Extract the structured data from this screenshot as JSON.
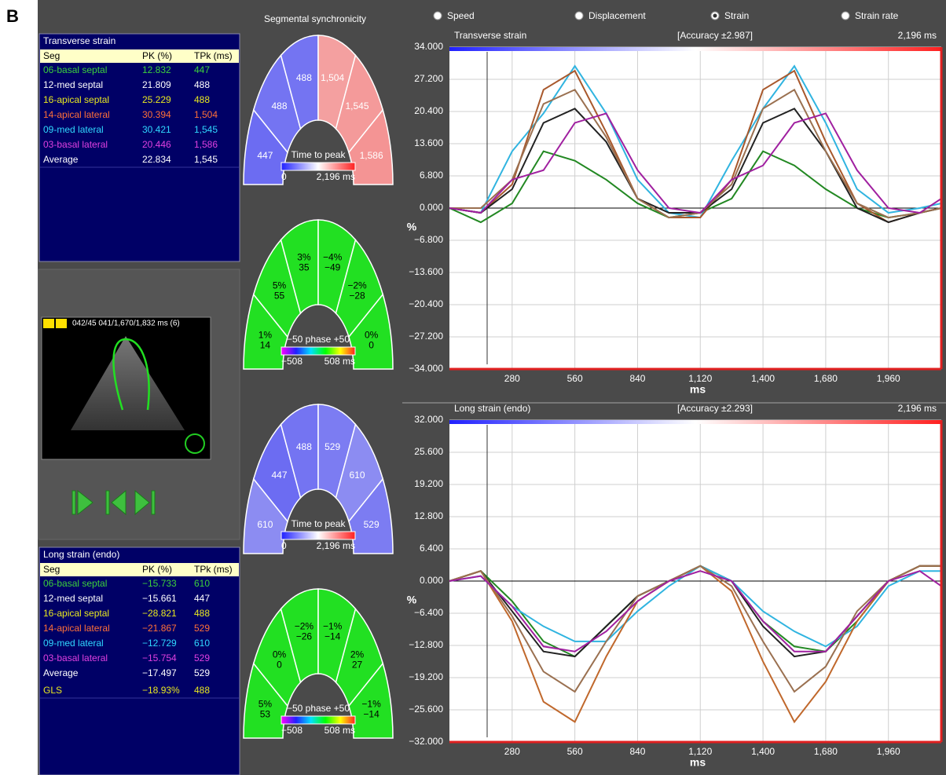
{
  "panel_label": "B",
  "header": {
    "title": "Segmental synchronicity",
    "options": [
      {
        "label": "Speed",
        "selected": false
      },
      {
        "label": "Displacement",
        "selected": false
      },
      {
        "label": "Strain",
        "selected": true
      },
      {
        "label": "Strain rate",
        "selected": false
      }
    ]
  },
  "tables": [
    {
      "title": "Transverse strain",
      "columns": [
        "Seg",
        "PK (%)",
        "TPk (ms)"
      ],
      "rows": [
        {
          "cells": [
            "06-basal septal",
            "12.832",
            "447"
          ],
          "color": "#3cd03c"
        },
        {
          "cells": [
            "12-med septal",
            "21.809",
            "488"
          ],
          "color": "#ffffff"
        },
        {
          "cells": [
            "16-apical septal",
            "25.229",
            "488"
          ],
          "color": "#e8e820"
        },
        {
          "cells": [
            "14-apical lateral",
            "30.394",
            "1,504"
          ],
          "color": "#ff7038"
        },
        {
          "cells": [
            "09-med lateral",
            "30.421",
            "1,545"
          ],
          "color": "#30d8ff"
        },
        {
          "cells": [
            "03-basal lateral",
            "20.446",
            "1,586"
          ],
          "color": "#e040e0"
        },
        {
          "cells": [
            "Average",
            "22.834",
            "1,545"
          ],
          "color": "#ffffff"
        }
      ]
    },
    {
      "title": "Long strain (endo)",
      "columns": [
        "Seg",
        "PK (%)",
        "TPk (ms)"
      ],
      "rows": [
        {
          "cells": [
            "06-basal septal",
            "−15.733",
            "610"
          ],
          "color": "#3cd03c"
        },
        {
          "cells": [
            "12-med septal",
            "−15.661",
            "447"
          ],
          "color": "#ffffff"
        },
        {
          "cells": [
            "16-apical septal",
            "−28.821",
            "488"
          ],
          "color": "#e8e820"
        },
        {
          "cells": [
            "14-apical lateral",
            "−21.867",
            "529"
          ],
          "color": "#ff7038"
        },
        {
          "cells": [
            "09-med lateral",
            "−12.729",
            "610"
          ],
          "color": "#30d8ff"
        },
        {
          "cells": [
            "03-basal lateral",
            "−15.754",
            "529"
          ],
          "color": "#e040e0"
        },
        {
          "cells": [
            "Average",
            "−17.497",
            "529"
          ],
          "color": "#ffffff"
        },
        {
          "cells": [
            "GLS",
            "−18.93%",
            "488"
          ],
          "color": "#e8e820"
        }
      ]
    }
  ],
  "echo": {
    "header": "042/45 041/1,670/1,832 ms (6)"
  },
  "arches": [
    {
      "segments": [
        {
          "lines": [
            "447"
          ],
          "color": "#6c6cf2"
        },
        {
          "lines": [
            "488"
          ],
          "color": "#7474f2"
        },
        {
          "lines": [
            "488"
          ],
          "color": "#7474f2"
        },
        {
          "lines": [
            "1,504"
          ],
          "color": "#f4a0a0"
        },
        {
          "lines": [
            "1,545"
          ],
          "color": "#f49a9a"
        },
        {
          "lines": [
            "1,586"
          ],
          "color": "#f49494"
        }
      ],
      "legend": {
        "title": "Time to peak",
        "min": "0",
        "max": "2,196 ms",
        "colors": [
          "#2020ff",
          "#ffffff",
          "#ff2020"
        ]
      }
    },
    {
      "segments": [
        {
          "lines": [
            "1%",
            "14"
          ],
          "color": "#22e022"
        },
        {
          "lines": [
            "5%",
            "55"
          ],
          "color": "#22e022"
        },
        {
          "lines": [
            "3%",
            "35"
          ],
          "color": "#22e022"
        },
        {
          "lines": [
            "−4%",
            "−49"
          ],
          "color": "#22e022"
        },
        {
          "lines": [
            "−2%",
            "−28"
          ],
          "color": "#22e022"
        },
        {
          "lines": [
            "0%",
            "0"
          ],
          "color": "#22e022"
        }
      ],
      "legend": {
        "title": "−50 phase +50",
        "min": "−508",
        "max": "508 ms",
        "colors": [
          "#ff00ff",
          "#2020ff",
          "#00e0ff",
          "#00ff00",
          "#ffff00",
          "#ff2020"
        ]
      }
    },
    {
      "segments": [
        {
          "lines": [
            "610"
          ],
          "color": "#8c8cf2"
        },
        {
          "lines": [
            "447"
          ],
          "color": "#6c6cf2"
        },
        {
          "lines": [
            "488"
          ],
          "color": "#7474f2"
        },
        {
          "lines": [
            "529"
          ],
          "color": "#7c7cf2"
        },
        {
          "lines": [
            "610"
          ],
          "color": "#8c8cf2"
        },
        {
          "lines": [
            "529"
          ],
          "color": "#7c7cf2"
        }
      ],
      "legend": {
        "title": "Time to peak",
        "min": "0",
        "max": "2,196 ms",
        "colors": [
          "#2020ff",
          "#ffffff",
          "#ff2020"
        ]
      }
    },
    {
      "segments": [
        {
          "lines": [
            "5%",
            "53"
          ],
          "color": "#22e022"
        },
        {
          "lines": [
            "0%",
            "0"
          ],
          "color": "#22e022"
        },
        {
          "lines": [
            "−2%",
            "−26"
          ],
          "color": "#22e022"
        },
        {
          "lines": [
            "−1%",
            "−14"
          ],
          "color": "#22e022"
        },
        {
          "lines": [
            "2%",
            "27"
          ],
          "color": "#22e022"
        },
        {
          "lines": [
            "−1%",
            "−14"
          ],
          "color": "#22e022"
        }
      ],
      "legend": {
        "title": "−50 phase +50",
        "min": "−508",
        "max": "508 ms",
        "colors": [
          "#ff00ff",
          "#2020ff",
          "#00e0ff",
          "#00ff00",
          "#ffff00",
          "#ff2020"
        ]
      }
    }
  ],
  "chart_data": [
    {
      "type": "line",
      "title": "Transverse strain",
      "subtitle": "[Accuracy ±2.987]",
      "annotation": "2,196 ms",
      "xlabel": "ms",
      "ylabel": "%",
      "grid": true,
      "x": [
        0,
        140,
        280,
        420,
        560,
        700,
        840,
        980,
        1120,
        1260,
        1400,
        1540,
        1680,
        1820,
        1960,
        2100,
        2196
      ],
      "xlim": [
        0,
        2196
      ],
      "xticks": [
        280,
        560,
        840,
        {
          "value": 1120,
          "label": "1,120"
        },
        {
          "value": 1400,
          "label": "1,400"
        },
        {
          "value": 1680,
          "label": "1,680"
        },
        {
          "value": 1960,
          "label": "1,960"
        }
      ],
      "ylim": [
        -34,
        34
      ],
      "yticks": [
        {
          "value": 34,
          "label": "34.000"
        },
        {
          "value": 27.2,
          "label": "27.200"
        },
        {
          "value": 20.4,
          "label": "20.400"
        },
        {
          "value": 13.6,
          "label": "13.600"
        },
        {
          "value": 6.8,
          "label": "6.800"
        },
        {
          "value": 0,
          "label": "0.000"
        },
        {
          "value": -6.8,
          "label": "−6.800"
        },
        {
          "value": -13.6,
          "label": "−13.600"
        },
        {
          "value": -20.4,
          "label": "−20.400"
        },
        {
          "value": -27.2,
          "label": "−27.200"
        },
        {
          "value": -34,
          "label": "−34.000"
        }
      ],
      "series": [
        {
          "color": "#228822",
          "values": [
            0,
            -3,
            1,
            12,
            10,
            6,
            1,
            -2,
            -1,
            2,
            12,
            9,
            4,
            0,
            -2,
            -1,
            0
          ]
        },
        {
          "color": "#30b4e0",
          "values": [
            0,
            -1,
            12,
            20,
            30,
            20,
            6,
            -1,
            -2,
            10,
            21,
            30,
            18,
            4,
            -1,
            0,
            1
          ]
        },
        {
          "color": "#a8582c",
          "values": [
            0,
            -1,
            5,
            25,
            29,
            16,
            2,
            -2,
            -2,
            6,
            25,
            29,
            14,
            1,
            -3,
            -1,
            0
          ]
        },
        {
          "color": "#222222",
          "values": [
            0,
            -1,
            4,
            18,
            21,
            14,
            2,
            -1,
            -1,
            4,
            18,
            21,
            12,
            0,
            -3,
            -1,
            0
          ]
        },
        {
          "color": "#9a7050",
          "values": [
            0,
            0,
            6,
            22,
            25,
            15,
            2,
            -2,
            -1,
            5,
            21,
            25,
            12,
            1,
            -2,
            -1,
            0
          ]
        },
        {
          "color": "#a020a0",
          "values": [
            0,
            -1,
            6,
            8,
            18,
            20,
            8,
            0,
            -1,
            6,
            9,
            18,
            20,
            8,
            0,
            -1,
            2
          ]
        }
      ]
    },
    {
      "type": "line",
      "title": "Long strain (endo)",
      "subtitle": "[Accuracy ±2.293]",
      "annotation": "2,196 ms",
      "xlabel": "ms",
      "ylabel": "%",
      "grid": true,
      "x": [
        0,
        140,
        280,
        420,
        560,
        700,
        840,
        980,
        1120,
        1260,
        1400,
        1540,
        1680,
        1820,
        1960,
        2100,
        2196
      ],
      "xlim": [
        0,
        2196
      ],
      "xticks": [
        280,
        560,
        840,
        {
          "value": 1120,
          "label": "1,120"
        },
        {
          "value": 1400,
          "label": "1,400"
        },
        {
          "value": 1680,
          "label": "1,680"
        },
        {
          "value": 1960,
          "label": "1,960"
        }
      ],
      "ylim": [
        -32,
        32
      ],
      "yticks": [
        {
          "value": 32,
          "label": "32.000"
        },
        {
          "value": 25.6,
          "label": "25.600"
        },
        {
          "value": 19.2,
          "label": "19.200"
        },
        {
          "value": 12.8,
          "label": "12.800"
        },
        {
          "value": 6.4,
          "label": "6.400"
        },
        {
          "value": 0,
          "label": "0.000"
        },
        {
          "value": -6.4,
          "label": "−6.400"
        },
        {
          "value": -12.8,
          "label": "−12.800"
        },
        {
          "value": -19.2,
          "label": "−19.200"
        },
        {
          "value": -25.6,
          "label": "−25.600"
        },
        {
          "value": -32,
          "label": "−32.000"
        }
      ],
      "series": [
        {
          "color": "#228822",
          "values": [
            0,
            2,
            -4,
            -12,
            -15,
            -9,
            -3,
            0,
            3,
            0,
            -8,
            -13,
            -14,
            -8,
            0,
            3,
            3
          ]
        },
        {
          "color": "#222222",
          "values": [
            0,
            2,
            -6,
            -14,
            -15,
            -9,
            -3,
            0,
            3,
            0,
            -9,
            -15,
            -14,
            -7,
            0,
            3,
            3
          ]
        },
        {
          "color": "#30b4e0",
          "values": [
            0,
            1,
            -5,
            -9,
            -12,
            -12,
            -6,
            -1,
            3,
            0,
            -6,
            -10,
            -13,
            -9,
            -1,
            2,
            2
          ]
        },
        {
          "color": "#c0682c",
          "values": [
            0,
            2,
            -8,
            -24,
            -28,
            -15,
            -4,
            0,
            3,
            -2,
            -16,
            -28,
            -20,
            -8,
            0,
            3,
            3
          ]
        },
        {
          "color": "#9a7050",
          "values": [
            0,
            2,
            -7,
            -18,
            -22,
            -12,
            -3,
            0,
            3,
            -1,
            -12,
            -22,
            -17,
            -6,
            0,
            3,
            3
          ]
        },
        {
          "color": "#a020a0",
          "values": [
            0,
            1,
            -5,
            -13,
            -14,
            -10,
            -4,
            0,
            2,
            0,
            -8,
            -14,
            -14,
            -7,
            0,
            2,
            -1
          ]
        }
      ]
    }
  ]
}
